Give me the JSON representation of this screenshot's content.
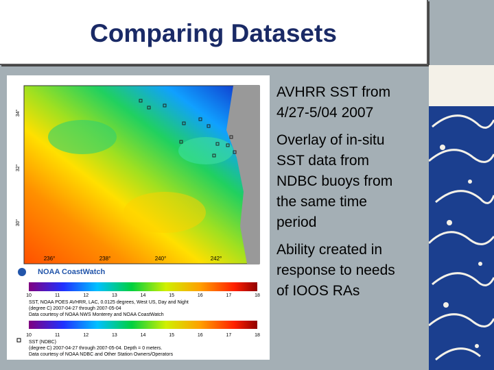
{
  "title": "Comparing Datasets",
  "bullets": [
    [
      "AVHRR SST from",
      "4/27-5/04 2007"
    ],
    [
      "Overlay of in-situ",
      "SST data from",
      "NDBC buoys from",
      "the same time",
      "period"
    ],
    [
      "Ability created in",
      "response to needs",
      "of IOOS RAs"
    ]
  ],
  "figure": {
    "lat_labels": [
      "34°",
      "32°",
      "30°"
    ],
    "lon_labels": [
      "236°",
      "238°",
      "240°",
      "242°"
    ],
    "logo": "NOAA CoastWatch",
    "scale1": {
      "ticks": [
        10,
        11,
        12,
        13,
        14,
        15,
        16,
        17,
        18
      ],
      "caption": [
        "SST, NOAA POES AVHRR, LAC, 0.0125 degrees, West US, Day and Night",
        "(degree C) 2007-04-27 through 2007-05-04",
        "Data courtesy of NOAA NWS Monterey and NOAA CoastWatch"
      ]
    },
    "scale2": {
      "ticks": [
        10,
        11,
        12,
        13,
        14,
        15,
        16,
        17,
        18
      ],
      "caption": [
        "SST (NDBC)",
        "(degree C) 2007-04-27 through 2007-05-04. Depth = 0 meters.",
        "Data courtesy of NOAA NDBC and Other Station Owners/Operators"
      ]
    }
  }
}
